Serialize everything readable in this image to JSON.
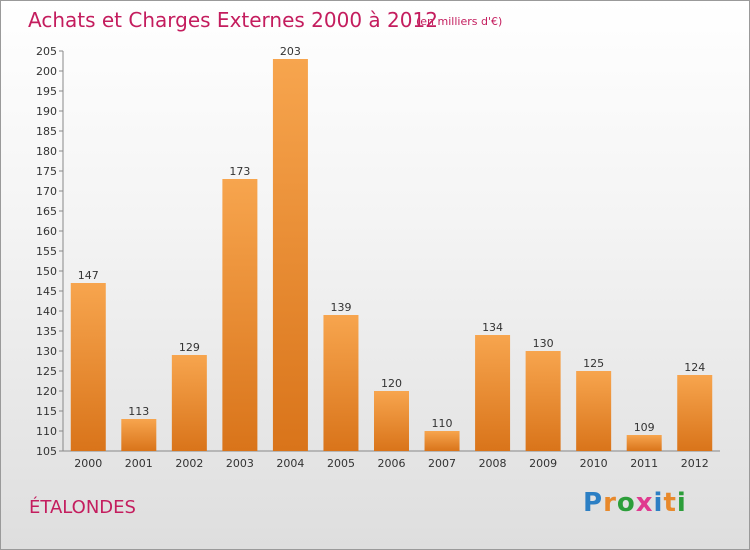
{
  "title": "Achats et Charges Externes 2000 à 2012",
  "unit": "(en milliers d'€)",
  "commune": "ÉTALONDES",
  "logo": {
    "text": "Proxiti",
    "colors": [
      "#2c7fc4",
      "#e8892b",
      "#2c9e3a",
      "#e03a8f",
      "#2c7fc4",
      "#e8892b",
      "#2c9e3a"
    ]
  },
  "colors": {
    "bar_top": "#f7a54e",
    "bar_bottom": "#d9741a",
    "title": "#c41d5e"
  },
  "chart_data": {
    "type": "bar",
    "categories": [
      "2000",
      "2001",
      "2002",
      "2003",
      "2004",
      "2005",
      "2006",
      "2007",
      "2008",
      "2009",
      "2010",
      "2011",
      "2012"
    ],
    "values": [
      147,
      113,
      129,
      173,
      203,
      139,
      120,
      110,
      134,
      130,
      125,
      109,
      124
    ],
    "ylim": [
      105,
      205
    ],
    "yticks": [
      105,
      110,
      115,
      120,
      125,
      130,
      135,
      140,
      145,
      150,
      155,
      160,
      165,
      170,
      175,
      180,
      185,
      190,
      195,
      200,
      205
    ],
    "grid": false
  }
}
